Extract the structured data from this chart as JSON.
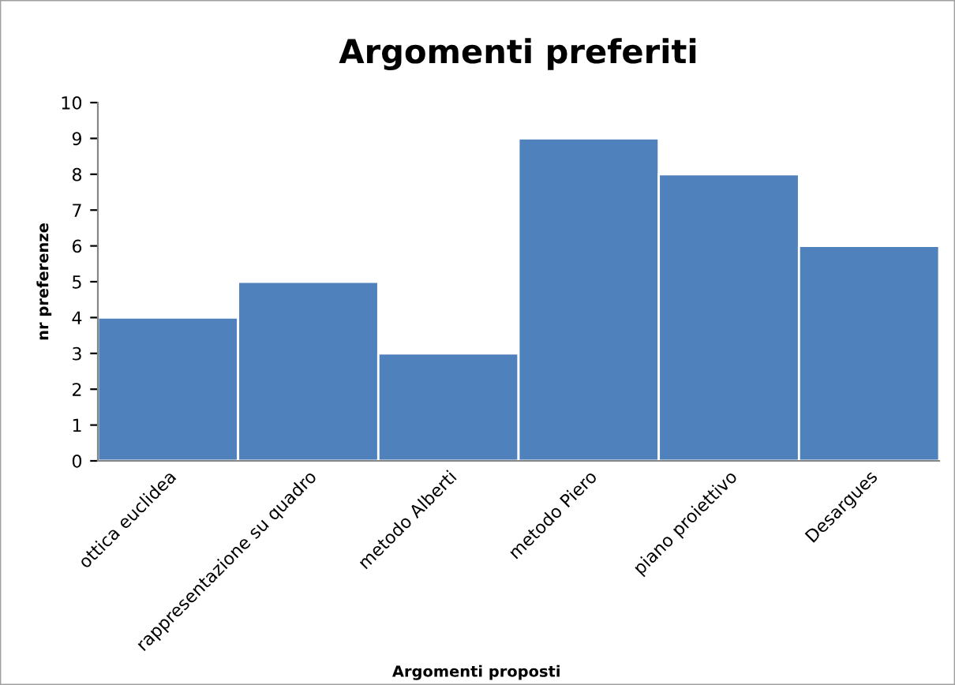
{
  "chart_data": {
    "type": "bar",
    "title": "Argomenti preferiti",
    "xlabel": "Argomenti proposti",
    "ylabel": "nr preferenze",
    "categories": [
      "ottica euclidea",
      "rappresentazione su quadro",
      "metodo Alberti",
      "metodo Piero",
      "piano proiettivo",
      "Desargues"
    ],
    "values": [
      4,
      5,
      3,
      9,
      8,
      6
    ],
    "color": "#4f81bd",
    "ylim": [
      0,
      10
    ],
    "yticks": [
      0,
      1,
      2,
      3,
      4,
      5,
      6,
      7,
      8,
      9,
      10
    ],
    "grid": false,
    "legend": false
  }
}
